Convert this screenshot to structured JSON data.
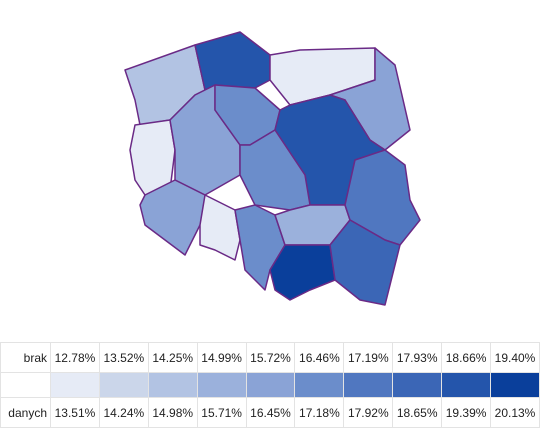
{
  "legend": {
    "no_data_top": "brak",
    "no_data_bottom": "danych",
    "no_data_color": "#ffffff",
    "from": [
      "12.78%",
      "13.52%",
      "14.25%",
      "14.99%",
      "15.72%",
      "16.46%",
      "17.19%",
      "17.93%",
      "18.66%",
      "19.40%"
    ],
    "to": [
      "13.51%",
      "14.24%",
      "14.98%",
      "15.71%",
      "16.45%",
      "17.18%",
      "17.92%",
      "18.65%",
      "19.39%",
      "20.13%"
    ],
    "colors": [
      "#e6ebf6",
      "#cbd6ea",
      "#b2c3e3",
      "#9bb1dc",
      "#8aa3d6",
      "#6b8dcb",
      "#5077c0",
      "#3b66b6",
      "#2455ab",
      "#0a3f9b"
    ]
  }
}
